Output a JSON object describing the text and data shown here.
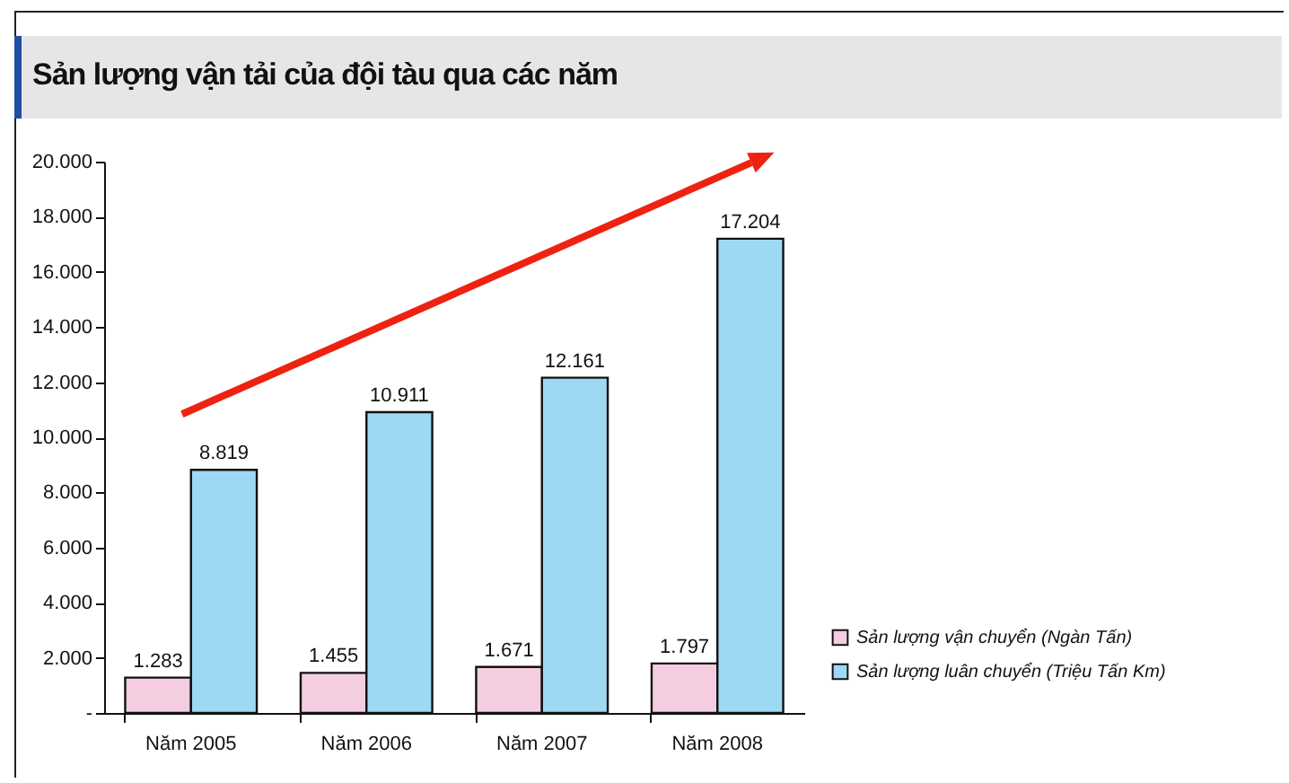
{
  "chart_data": {
    "type": "bar",
    "title": "Sản lượng vận tải của đội tàu qua các năm",
    "categories": [
      "Năm 2005",
      "Năm 2006",
      "Năm 2007",
      "Năm 2008"
    ],
    "series": [
      {
        "name": "Sản lượng vận chuyển (Ngàn Tấn)",
        "color": "#f4cde0",
        "values": [
          1283,
          1455,
          1671,
          1797
        ],
        "value_labels": [
          "1.283",
          "1.455",
          "1.671",
          "1.797"
        ]
      },
      {
        "name": "Sản lượng luân chuyển (Triệu Tấn Km)",
        "color": "#9ed9f3",
        "values": [
          8819,
          10911,
          12161,
          17204
        ],
        "value_labels": [
          "8.819",
          "10.911",
          "12.161",
          "17.204"
        ]
      }
    ],
    "ylim": [
      0,
      20000
    ],
    "yticks": [
      {
        "value": 0,
        "label": "-"
      },
      {
        "value": 2000,
        "label": "2.000"
      },
      {
        "value": 4000,
        "label": "4.000"
      },
      {
        "value": 6000,
        "label": "6.000"
      },
      {
        "value": 8000,
        "label": "8.000"
      },
      {
        "value": 10000,
        "label": "10.000"
      },
      {
        "value": 12000,
        "label": "12.000"
      },
      {
        "value": 14000,
        "label": "14.000"
      },
      {
        "value": 16000,
        "label": "16.000"
      },
      {
        "value": 18000,
        "label": "18.000"
      },
      {
        "value": 20000,
        "label": "20.000"
      }
    ],
    "grid": false,
    "legend": "bottom right"
  }
}
